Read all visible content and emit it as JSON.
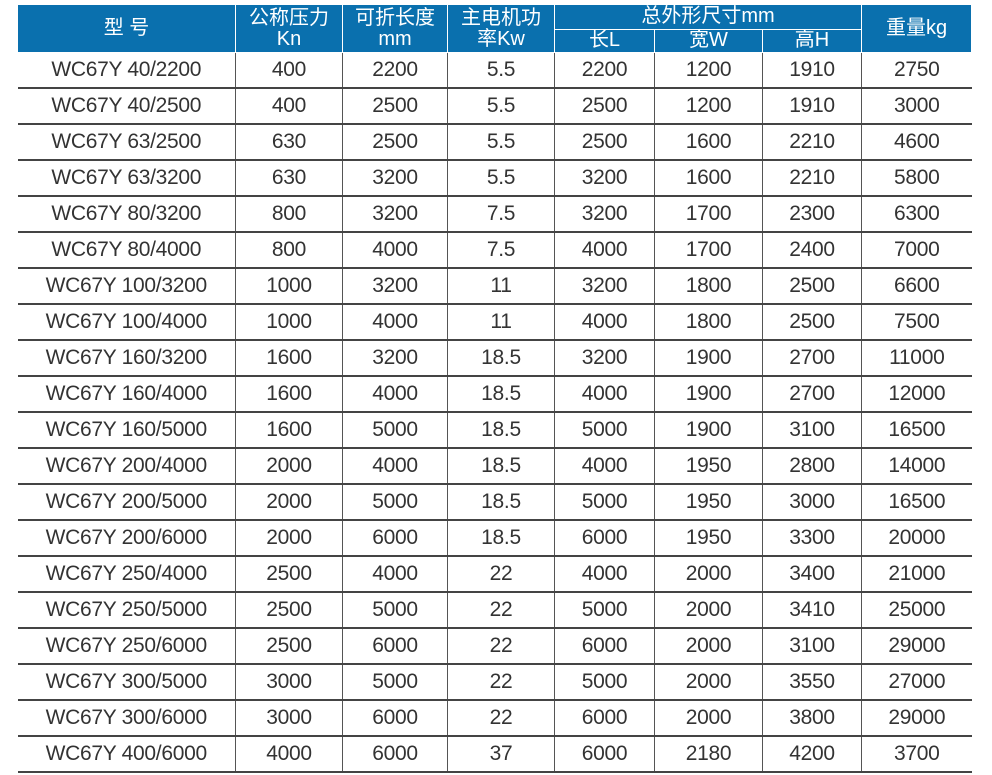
{
  "header": {
    "model": "型 号",
    "pressure": [
      "公称压力",
      "Kn"
    ],
    "length": [
      "可折长度",
      "mm"
    ],
    "power": [
      "主电机功",
      "率Kw"
    ],
    "dims": "总外形尺寸mm",
    "dim_l": "长L",
    "dim_w": "宽W",
    "dim_h": "高H",
    "weight": "重量kg"
  },
  "rows": [
    [
      "WC67Y 40/2200",
      "400",
      "2200",
      "5.5",
      "2200",
      "1200",
      "1910",
      "2750"
    ],
    [
      "WC67Y 40/2500",
      "400",
      "2500",
      "5.5",
      "2500",
      "1200",
      "1910",
      "3000"
    ],
    [
      "WC67Y 63/2500",
      "630",
      "2500",
      "5.5",
      "2500",
      "1600",
      "2210",
      "4600"
    ],
    [
      "WC67Y 63/3200",
      "630",
      "3200",
      "5.5",
      "3200",
      "1600",
      "2210",
      "5800"
    ],
    [
      "WC67Y 80/3200",
      "800",
      "3200",
      "7.5",
      "3200",
      "1700",
      "2300",
      "6300"
    ],
    [
      "WC67Y 80/4000",
      "800",
      "4000",
      "7.5",
      "4000",
      "1700",
      "2400",
      "7000"
    ],
    [
      "WC67Y 100/3200",
      "1000",
      "3200",
      "11",
      "3200",
      "1800",
      "2500",
      "6600"
    ],
    [
      "WC67Y 100/4000",
      "1000",
      "4000",
      "11",
      "4000",
      "1800",
      "2500",
      "7500"
    ],
    [
      "WC67Y 160/3200",
      "1600",
      "3200",
      "18.5",
      "3200",
      "1900",
      "2700",
      "11000"
    ],
    [
      "WC67Y 160/4000",
      "1600",
      "4000",
      "18.5",
      "4000",
      "1900",
      "2700",
      "12000"
    ],
    [
      "WC67Y 160/5000",
      "1600",
      "5000",
      "18.5",
      "5000",
      "1900",
      "3100",
      "16500"
    ],
    [
      "WC67Y 200/4000",
      "2000",
      "4000",
      "18.5",
      "4000",
      "1950",
      "2800",
      "14000"
    ],
    [
      "WC67Y 200/5000",
      "2000",
      "5000",
      "18.5",
      "5000",
      "1950",
      "3000",
      "16500"
    ],
    [
      "WC67Y 200/6000",
      "2000",
      "6000",
      "18.5",
      "6000",
      "1950",
      "3300",
      "20000"
    ],
    [
      "WC67Y 250/4000",
      "2500",
      "4000",
      "22",
      "4000",
      "2000",
      "3400",
      "21000"
    ],
    [
      "WC67Y 250/5000",
      "2500",
      "5000",
      "22",
      "5000",
      "2000",
      "3410",
      "25000"
    ],
    [
      "WC67Y 250/6000",
      "2500",
      "6000",
      "22",
      "6000",
      "2000",
      "3100",
      "29000"
    ],
    [
      "WC67Y 300/5000",
      "3000",
      "5000",
      "22",
      "5000",
      "2000",
      "3550",
      "27000"
    ],
    [
      "WC67Y 300/6000",
      "3000",
      "6000",
      "22",
      "6000",
      "2000",
      "3800",
      "29000"
    ],
    [
      "WC67Y 400/6000",
      "4000",
      "6000",
      "37",
      "6000",
      "2180",
      "4200",
      "3700"
    ]
  ],
  "colors": {
    "header_bg": "#0a70ae",
    "header_text": "#ffffff"
  }
}
